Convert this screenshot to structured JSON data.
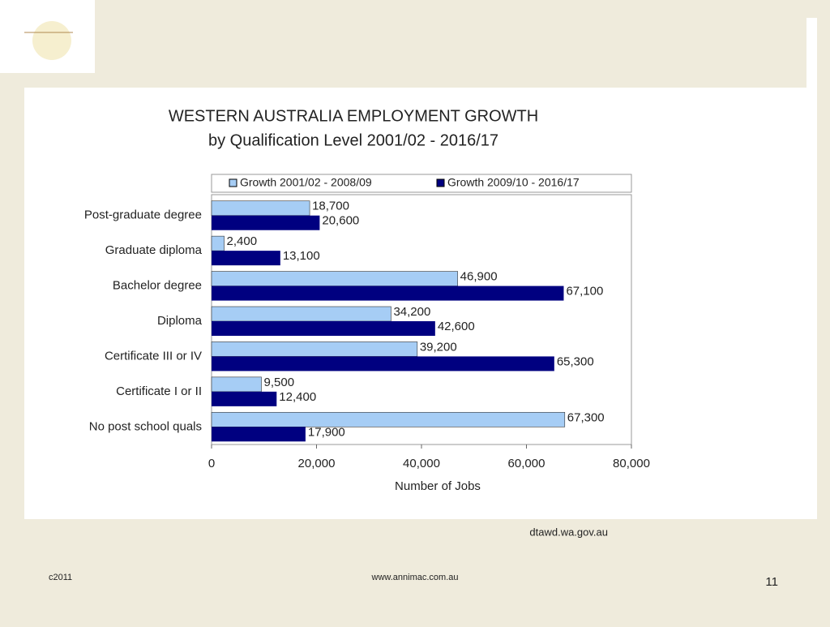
{
  "chart_data": {
    "type": "hbar",
    "title": "WESTERN AUSTRALIA EMPLOYMENT GROWTH",
    "subtitle": "by Qualification Level 2001/02 - 2016/17",
    "x_label": "Number of Jobs",
    "categories": [
      "Post-graduate degree",
      "Graduate diploma",
      "Bachelor degree",
      "Diploma",
      "Certificate III or IV",
      "Certificate I or II",
      "No post school quals"
    ],
    "series": [
      {
        "name": "Growth 2001/02 - 2008/09",
        "color": "#a6cdf5",
        "values": [
          18700,
          2400,
          46900,
          34200,
          39200,
          9500,
          67300
        ],
        "value_labels": [
          "18,700",
          "2,400",
          "46,900",
          "34,200",
          "39,200",
          "9,500",
          "67,300"
        ]
      },
      {
        "name": "Growth 2009/10 - 2016/17",
        "color": "#000080",
        "values": [
          20600,
          13100,
          67100,
          42600,
          65300,
          12400,
          17900
        ],
        "value_labels": [
          "20,600",
          "13,100",
          "67,100",
          "42,600",
          "65,300",
          "12,400",
          "17,900"
        ]
      }
    ],
    "xlim": [
      0,
      80000
    ],
    "xticks": [
      0,
      {
        "value": 20000,
        "label": "20,000"
      },
      {
        "value": 40000,
        "label": "40,000"
      },
      {
        "value": 60000,
        "label": "60,000"
      },
      {
        "value": 80000,
        "label": "80,000"
      }
    ],
    "legend": "top",
    "grid": false
  },
  "source": "dtawd.wa.gov.au",
  "footer": {
    "left": "c2011",
    "center": "www.annimac.com.au",
    "page_number": "11"
  }
}
